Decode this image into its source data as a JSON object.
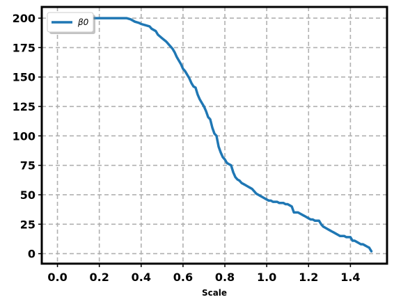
{
  "chart_data": {
    "type": "line",
    "title": "",
    "xlabel": "Scale",
    "ylabel": "",
    "xlim": [
      -0.075,
      1.575
    ],
    "ylim": [
      -8.5,
      209.5
    ],
    "xticks": [
      0.0,
      0.2,
      0.4,
      0.6,
      0.8,
      1.0,
      1.2,
      1.4
    ],
    "xtick_labels": [
      "0.0",
      "0.2",
      "0.4",
      "0.6",
      "0.8",
      "1.0",
      "1.2",
      "1.4"
    ],
    "yticks": [
      0,
      25,
      50,
      75,
      100,
      125,
      150,
      175,
      200
    ],
    "ytick_labels": [
      "0",
      "25",
      "50",
      "75",
      "100",
      "125",
      "150",
      "175",
      "200"
    ],
    "grid": true,
    "legend": {
      "position": "top-left",
      "entries": [
        "β0"
      ]
    },
    "series": [
      {
        "name": "β0",
        "color": "#1f77b4",
        "x": [
          0.0,
          0.05,
          0.1,
          0.15,
          0.2,
          0.25,
          0.3,
          0.33,
          0.35,
          0.37,
          0.39,
          0.4,
          0.42,
          0.44,
          0.45,
          0.47,
          0.48,
          0.5,
          0.52,
          0.53,
          0.55,
          0.56,
          0.57,
          0.59,
          0.6,
          0.61,
          0.63,
          0.64,
          0.65,
          0.66,
          0.67,
          0.68,
          0.69,
          0.7,
          0.71,
          0.72,
          0.73,
          0.74,
          0.75,
          0.76,
          0.77,
          0.78,
          0.79,
          0.8,
          0.81,
          0.82,
          0.83,
          0.84,
          0.85,
          0.86,
          0.87,
          0.88,
          0.89,
          0.9,
          0.91,
          0.92,
          0.93,
          0.94,
          0.95,
          0.96,
          0.97,
          0.98,
          0.99,
          1.0,
          1.01,
          1.02,
          1.03,
          1.04,
          1.05,
          1.06,
          1.07,
          1.08,
          1.09,
          1.1,
          1.11,
          1.12,
          1.13,
          1.14,
          1.15,
          1.16,
          1.17,
          1.18,
          1.19,
          1.2,
          1.21,
          1.22,
          1.23,
          1.24,
          1.25,
          1.26,
          1.27,
          1.28,
          1.29,
          1.3,
          1.31,
          1.32,
          1.33,
          1.34,
          1.35,
          1.36,
          1.37,
          1.38,
          1.39,
          1.4,
          1.41,
          1.42,
          1.43,
          1.44,
          1.45,
          1.46,
          1.47,
          1.48,
          1.49,
          1.5
        ],
        "y": [
          200,
          200,
          200,
          200,
          200,
          200,
          200,
          200,
          199,
          197,
          196,
          195,
          194,
          193,
          191,
          189,
          186,
          183,
          180,
          178,
          174,
          171,
          167,
          161,
          157,
          155,
          149,
          145,
          142,
          141,
          135,
          131,
          128,
          125,
          121,
          116,
          114,
          107,
          102,
          100,
          91,
          86,
          82,
          80,
          77,
          76,
          75,
          69,
          65,
          63,
          62,
          60,
          59,
          58,
          57,
          56,
          55,
          53,
          51,
          50,
          49,
          48,
          47,
          46,
          45,
          45,
          44,
          44,
          44,
          43,
          43,
          43,
          42,
          42,
          41,
          40,
          35,
          35,
          35,
          34,
          33,
          32,
          31,
          30,
          29,
          29,
          28,
          28,
          28,
          25,
          23,
          22,
          21,
          20,
          19,
          18,
          17,
          16,
          15,
          15,
          15,
          14,
          14,
          14,
          11,
          11,
          10,
          9,
          8,
          8,
          7,
          6,
          5,
          2
        ]
      }
    ]
  }
}
